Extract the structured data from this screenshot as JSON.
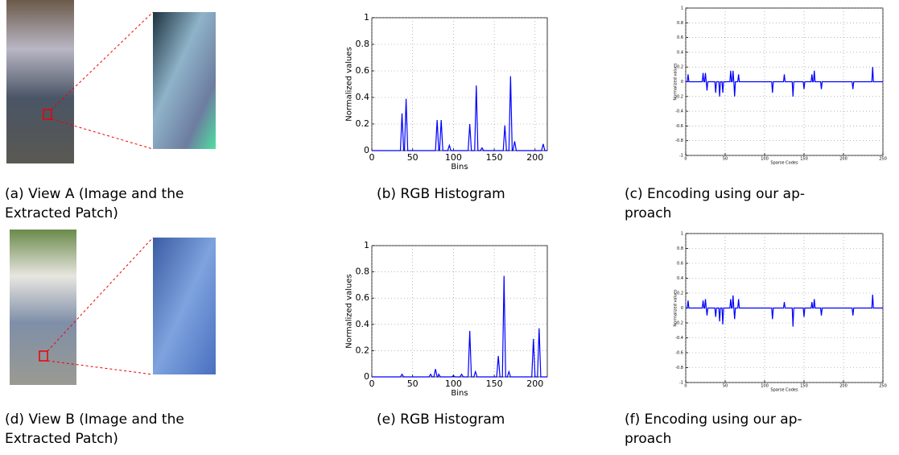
{
  "figures": [
    {
      "caption": [
        "(a) View A (Image and the",
        "Extracted Patch)"
      ]
    },
    {
      "caption": [
        "(d) View B (Image and the",
        "Extracted Patch)"
      ]
    }
  ],
  "chart_data": [
    {
      "type": "line",
      "caption": [
        "(b) RGB Histogram"
      ],
      "xlabel": "Bins",
      "ylabel": "Normalized values",
      "xlim": [
        0,
        215
      ],
      "xticks": [
        0,
        50,
        100,
        150,
        200
      ],
      "ylim": [
        0,
        1
      ],
      "yticks": [
        0,
        0.2,
        0.4,
        0.6,
        0.8,
        1
      ],
      "grid": true,
      "x": [
        0,
        35,
        37,
        39,
        40,
        42,
        44,
        78,
        80,
        82,
        83,
        85,
        87,
        93,
        95,
        97,
        118,
        120,
        122,
        126,
        128,
        130,
        133,
        135,
        137,
        161,
        163,
        165,
        168,
        170,
        172,
        173,
        175,
        177,
        208,
        210,
        212,
        215
      ],
      "series": [
        {
          "color": "#0000ff",
          "values": [
            0,
            0,
            0.28,
            0,
            0,
            0.39,
            0,
            0,
            0.23,
            0,
            0,
            0.23,
            0,
            0,
            0.04,
            0,
            0,
            0.2,
            0,
            0,
            0.49,
            0,
            0,
            0.02,
            0,
            0,
            0.19,
            0,
            0,
            0.56,
            0,
            0,
            0.07,
            0,
            0,
            0.05,
            0,
            0
          ]
        }
      ]
    },
    {
      "type": "line",
      "caption": [
        "(c) Encoding using our ap-",
        "proach"
      ],
      "xlabel": "Sparse Codes",
      "ylabel": "Normalized values",
      "xlim": [
        0,
        250
      ],
      "xticks": [
        0,
        50,
        100,
        150,
        200,
        250
      ],
      "ylim": [
        -1,
        1
      ],
      "yticks": [
        -1,
        -0.8,
        -0.6,
        -0.4,
        -0.2,
        0,
        0.2,
        0.4,
        0.6,
        0.8,
        1
      ],
      "grid": true,
      "x": [
        0,
        2,
        3,
        4,
        21,
        22,
        23,
        24,
        25,
        26,
        27,
        28,
        37,
        38,
        39,
        42,
        43,
        44,
        46,
        47,
        48,
        56,
        57,
        58,
        59,
        60,
        61,
        62,
        63,
        66,
        67,
        68,
        109,
        110,
        111,
        124,
        125,
        126,
        135,
        136,
        137,
        149,
        150,
        151,
        159,
        160,
        161,
        162,
        163,
        164,
        171,
        172,
        173,
        211,
        212,
        213,
        236,
        237,
        238,
        250
      ],
      "series": [
        {
          "color": "#0000ff",
          "values": [
            0,
            0,
            0.1,
            0,
            0,
            0.12,
            0,
            0,
            0.12,
            0,
            -0.12,
            0,
            0,
            -0.15,
            0,
            0,
            -0.2,
            0,
            0,
            -0.15,
            0,
            0,
            0.15,
            0,
            0,
            0.15,
            0,
            -0.2,
            0,
            0,
            0.1,
            0,
            0,
            -0.15,
            0,
            0,
            0.1,
            0,
            0,
            -0.2,
            0,
            0,
            -0.1,
            0,
            0,
            0.1,
            0,
            0,
            0.15,
            0,
            0,
            -0.1,
            0,
            0,
            -0.1,
            0,
            0,
            0.2,
            0,
            0
          ]
        }
      ]
    },
    {
      "type": "line",
      "caption": [
        "(e) RGB Histogram"
      ],
      "xlabel": "Bins",
      "ylabel": "Normalized values",
      "xlim": [
        0,
        215
      ],
      "xticks": [
        0,
        50,
        100,
        150,
        200
      ],
      "ylim": [
        0,
        1
      ],
      "yticks": [
        0,
        0.2,
        0.4,
        0.6,
        0.8,
        1
      ],
      "grid": true,
      "x": [
        0,
        35,
        37,
        39,
        70,
        72,
        74,
        76,
        78,
        80,
        81,
        82,
        84,
        98,
        100,
        102,
        108,
        110,
        112,
        118,
        120,
        122,
        125,
        127,
        129,
        153,
        155,
        157,
        160,
        162,
        164,
        166,
        168,
        170,
        196,
        198,
        200,
        203,
        205,
        207,
        215
      ],
      "series": [
        {
          "color": "#0000ff",
          "values": [
            0,
            0,
            0.02,
            0,
            0,
            0.02,
            0,
            0,
            0.06,
            0,
            0,
            0.02,
            0,
            0,
            0.01,
            0,
            0,
            0.02,
            0,
            0,
            0.35,
            0,
            0,
            0.04,
            0,
            0,
            0.16,
            0,
            0,
            0.77,
            0,
            0,
            0.04,
            0,
            0,
            0.29,
            0,
            0,
            0.37,
            0,
            0
          ]
        }
      ]
    },
    {
      "type": "line",
      "caption": [
        "(f) Encoding using our ap-",
        "proach"
      ],
      "xlabel": "Sparse Codes",
      "ylabel": "Normalized values",
      "xlim": [
        0,
        250
      ],
      "xticks": [
        0,
        50,
        100,
        150,
        200,
        250
      ],
      "ylim": [
        -1,
        1
      ],
      "yticks": [
        -1,
        -0.8,
        -0.6,
        -0.4,
        -0.2,
        0,
        0.2,
        0.4,
        0.6,
        0.8,
        1
      ],
      "grid": true,
      "x": [
        0,
        2,
        3,
        4,
        21,
        22,
        23,
        24,
        25,
        26,
        27,
        28,
        37,
        38,
        39,
        42,
        43,
        44,
        46,
        47,
        48,
        56,
        57,
        58,
        59,
        60,
        61,
        62,
        63,
        66,
        67,
        68,
        109,
        110,
        111,
        124,
        125,
        126,
        135,
        136,
        137,
        149,
        150,
        151,
        159,
        160,
        161,
        162,
        163,
        164,
        171,
        172,
        173,
        211,
        212,
        213,
        236,
        237,
        238,
        250
      ],
      "series": [
        {
          "color": "#0000ff",
          "values": [
            0,
            0,
            0.1,
            0,
            0,
            0.1,
            0,
            0,
            0.12,
            0,
            -0.1,
            0,
            0,
            -0.12,
            0,
            0,
            -0.18,
            0,
            0,
            -0.22,
            0,
            0,
            0.12,
            0,
            0,
            0.17,
            0,
            -0.15,
            0,
            0,
            0.12,
            0,
            0,
            -0.15,
            0,
            0,
            0.08,
            0,
            0,
            -0.25,
            0,
            0,
            -0.12,
            0,
            0,
            0.08,
            0,
            0,
            0.12,
            0,
            0,
            -0.1,
            0,
            0,
            -0.1,
            0,
            0,
            0.18,
            0,
            0
          ]
        }
      ]
    }
  ]
}
